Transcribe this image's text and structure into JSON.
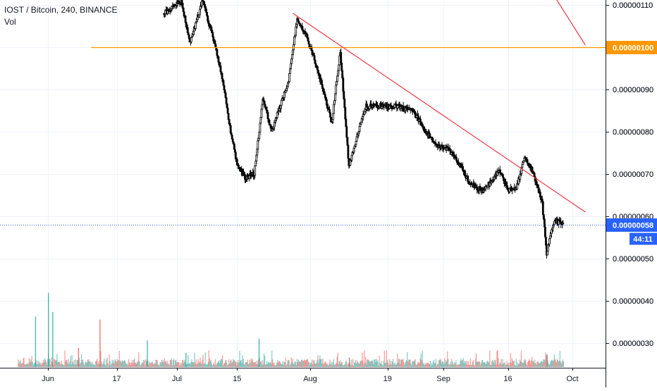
{
  "legend": {
    "symbol_line": "IOST / Bitcoin, 240, BINANCE",
    "volume_label": "Vol"
  },
  "colors": {
    "candle": "#000000",
    "trendline": "#f23645",
    "horizontal_level": "#ff9800",
    "price_line": "#2962ff",
    "price_tag": "#2962ff",
    "countdown_tag": "#2962ff",
    "volume_up": "#26a69a",
    "volume_down": "#ef5350",
    "grid": "#f0f3fa"
  },
  "chart_data": {
    "type": "candlestick",
    "x_ticks": [
      "Jun",
      "17",
      "Jul",
      "15",
      "Aug",
      "19",
      "Sep",
      "16",
      "Oct"
    ],
    "y_ticks": [
      "0.00000110",
      "0.00000100",
      "0.00000090",
      "0.00000080",
      "0.00000070",
      "0.00000060",
      "0.00000050",
      "0.00000040",
      "0.00000030"
    ],
    "ylim": [
      2.45e-07,
      1.125e-06
    ],
    "grid": true,
    "price_path": [
      [
        "Jun 28",
        1.08e-06
      ],
      [
        "Jul 2",
        1.11e-06
      ],
      [
        "Jul 4",
        1.01e-06
      ],
      [
        "Jul 7",
        1.11e-06
      ],
      [
        "Jul 10",
        1e-06
      ],
      [
        "Jul 12",
        9e-07
      ],
      [
        "Jul 13",
        8.3e-07
      ],
      [
        "Jul 15",
        7.2e-07
      ],
      [
        "Jul 17",
        6.9e-07
      ],
      [
        "Jul 19",
        7e-07
      ],
      [
        "Jul 21",
        8.8e-07
      ],
      [
        "Jul 23",
        8e-07
      ],
      [
        "Jul 27",
        9.2e-07
      ],
      [
        "Jul 29",
        1.07e-06
      ],
      [
        "Jul 31",
        1.03e-06
      ],
      [
        "Aug 2",
        9.7e-07
      ],
      [
        "Aug 4",
        9e-07
      ],
      [
        "Aug 6",
        8.2e-07
      ],
      [
        "Aug 8",
        9.9e-07
      ],
      [
        "Aug 10",
        7.2e-07
      ],
      [
        "Aug 12",
        7.9e-07
      ],
      [
        "Aug 14",
        8.6e-07
      ],
      [
        "Aug 18",
        8.6e-07
      ],
      [
        "Aug 22",
        8.6e-07
      ],
      [
        "Aug 25",
        8.5e-07
      ],
      [
        "Aug 28",
        8e-07
      ],
      [
        "Aug 30",
        7.7e-07
      ],
      [
        "Sep 2",
        7.6e-07
      ],
      [
        "Sep 5",
        7.2e-07
      ],
      [
        "Sep 7",
        6.8e-07
      ],
      [
        "Sep 10",
        6.6e-07
      ],
      [
        "Sep 12",
        6.8e-07
      ],
      [
        "Sep 14",
        7.1e-07
      ],
      [
        "Sep 16",
        6.6e-07
      ],
      [
        "Sep 18",
        6.7e-07
      ],
      [
        "Sep 20",
        7.4e-07
      ],
      [
        "Sep 22",
        7e-07
      ],
      [
        "Sep 24",
        6.3e-07
      ],
      [
        "Sep 25",
        5.1e-07
      ],
      [
        "Sep 26",
        5.6e-07
      ],
      [
        "Sep 27",
        5.9e-07
      ],
      [
        "Sep 29",
        5.8e-07
      ]
    ],
    "trendlines": [
      {
        "from": [
          "Jul 28",
          1.08e-06
        ],
        "to": [
          "Oct 4",
          6.1e-07
        ]
      },
      {
        "from": [
          "Sep 25",
          1.15e-06
        ],
        "to": [
          "Oct 4",
          1.005e-06
        ]
      }
    ],
    "horizontal_level": {
      "value": 1e-06,
      "label": "0.00000100"
    },
    "current_price": {
      "value": 5.8e-07,
      "label": "0.00000058"
    },
    "countdown": "44:11",
    "volume_spikes": [
      {
        "date": "May 29",
        "rel": 0.53,
        "dir": "up"
      },
      {
        "date": "Jun 1",
        "rel": 0.78,
        "dir": "up"
      },
      {
        "date": "Jun 2",
        "rel": 0.58,
        "dir": "up"
      },
      {
        "date": "Jun 8",
        "rel": 0.2,
        "dir": "down"
      },
      {
        "date": "Jun 13",
        "rel": 0.5,
        "dir": "down"
      },
      {
        "date": "Jun 24",
        "rel": 0.28,
        "dir": "up"
      },
      {
        "date": "Jul 3",
        "rel": 0.15,
        "dir": "up"
      },
      {
        "date": "Jul 20",
        "rel": 0.3,
        "dir": "up"
      },
      {
        "date": "Aug 10",
        "rel": 0.1,
        "dir": "down"
      },
      {
        "date": "Sep 25",
        "rel": 0.12,
        "dir": "down"
      }
    ]
  }
}
